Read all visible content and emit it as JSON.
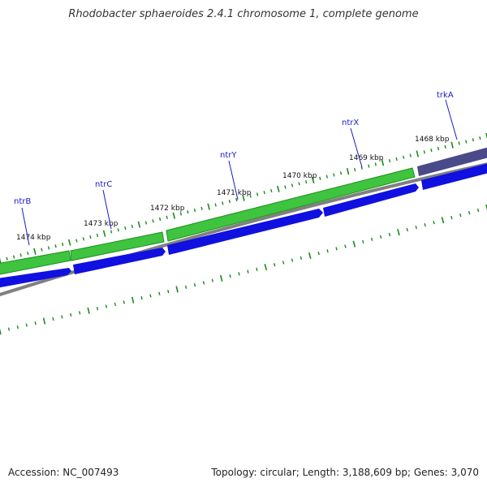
{
  "title": "Rhodobacter sphaeroides 2.4.1 chromosome 1, complete genome",
  "footer": {
    "accession": "Accession: NC_007493",
    "summary": "Topology: circular; Length: 3,188,609 bp; Genes: 3,070"
  },
  "colors": {
    "forward_green": "#3ec43e",
    "forward_green_dark": "#1f8f1f",
    "reverse_blue": "#1010e0",
    "trkA_purple": "#4a4a8a",
    "backbone_grey": "#808080",
    "tick_green": "#1a8a1a",
    "gene_label_blue": "#1a1acc"
  },
  "kbp_labels": [
    "1474 kbp",
    "1473 kbp",
    "1472 kbp",
    "1471 kbp",
    "1470 kbp",
    "1469 kbp",
    "1468 kbp"
  ],
  "gene_labels": [
    "ntrB",
    "ntrC",
    "ntrY",
    "ntrX",
    "trkA"
  ]
}
